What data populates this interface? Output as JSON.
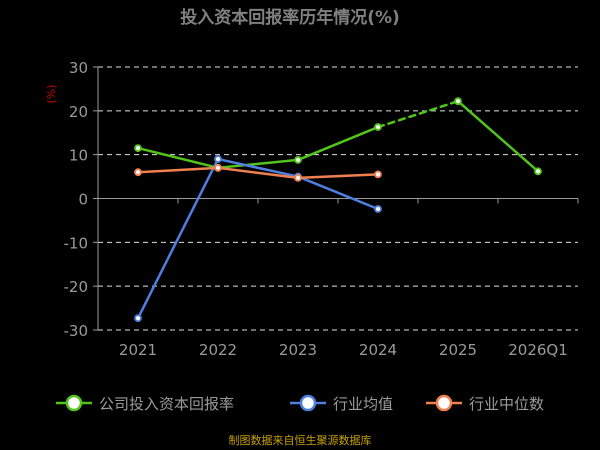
{
  "chart_data": {
    "type": "line",
    "title": "投入资本回报率历年情况(%)",
    "ylabel": "(%)",
    "categories": [
      "2021",
      "2022",
      "2023",
      "2024",
      "2025",
      "2026Q1"
    ],
    "ylim": [
      -30,
      30
    ],
    "yticks": [
      30,
      20,
      10,
      0,
      -10,
      -20,
      -30
    ],
    "grid": true,
    "legend_position": "bottom",
    "series": [
      {
        "name": "公司投入资本回报率",
        "color": "#52c41a",
        "values": [
          11.5,
          7.0,
          8.8,
          16.3,
          22.2,
          6.2
        ],
        "dashed_segments": [
          [
            3,
            4
          ]
        ]
      },
      {
        "name": "行业均值",
        "color": "#4e7fe0",
        "values": [
          -27.3,
          9.0,
          5.0,
          -2.4,
          null,
          null
        ],
        "dashed_segments": []
      },
      {
        "name": "行业中位数",
        "color": "#f08050",
        "values": [
          6.0,
          7.0,
          4.7,
          5.5,
          null,
          null
        ],
        "dashed_segments": []
      }
    ]
  },
  "colors": {
    "background": "#000000",
    "title": "#808080",
    "ylabel": "#cc0000",
    "axis_text": "#9a9a9a",
    "grid": "#e0e0e0",
    "source": "#c8a000"
  },
  "source": "制图数据来自恒生聚源数据库"
}
